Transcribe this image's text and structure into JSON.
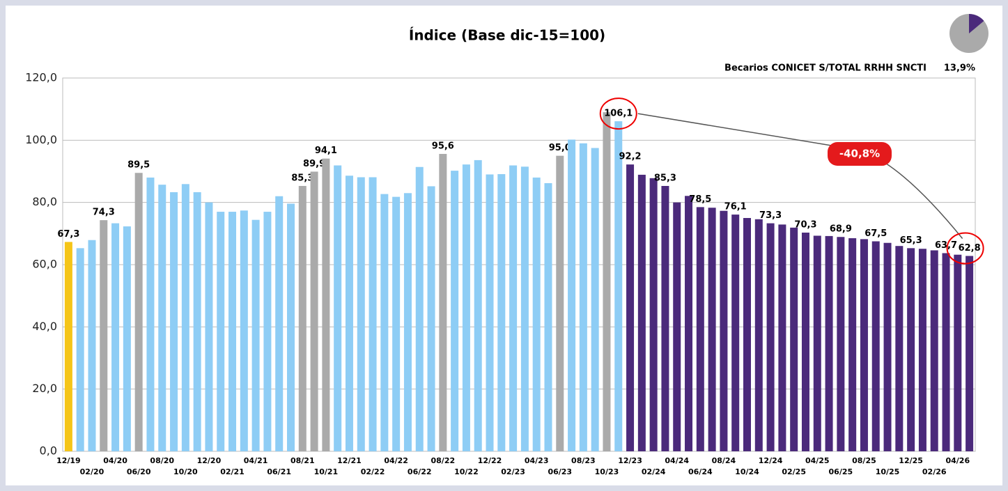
{
  "chart_data": {
    "type": "bar",
    "title": "Índice (Base dic-15=100)",
    "subtitle": "Becarios CONICET S/TOTAL RRHH SNCTI",
    "inset_pie": {
      "value": 13.9,
      "value_label": "13,9%",
      "colors": [
        "#4b2a7b",
        "#aaaaaa"
      ]
    },
    "annotation": "-40,8%",
    "categories": [
      "12/19",
      null,
      "02/20",
      null,
      "04/20",
      null,
      "06/20",
      null,
      "08/20",
      null,
      "10/20",
      null,
      "12/20",
      null,
      "02/21",
      null,
      "04/21",
      null,
      "06/21",
      null,
      "08/21",
      null,
      "10/21",
      null,
      "12/21",
      null,
      "02/22",
      null,
      "04/22",
      null,
      "06/22",
      null,
      "08/22",
      null,
      "10/22",
      null,
      "12/22",
      null,
      "02/23",
      null,
      "04/23",
      null,
      "06/23",
      null,
      "08/23",
      null,
      "10/23",
      null,
      "12/23",
      null,
      "02/24",
      null,
      "04/24",
      null,
      "06/24",
      null,
      "08/24",
      null,
      "10/24",
      null,
      "12/24",
      null,
      "02/25",
      null,
      "04/25",
      null,
      "06/25",
      null,
      "08/25",
      null,
      "10/25",
      null,
      "12/25",
      null,
      "02/26",
      null,
      "04/26",
      null
    ],
    "values": [
      67.3,
      65.3,
      67.9,
      74.3,
      73.3,
      72.3,
      89.5,
      88.0,
      85.7,
      83.3,
      85.9,
      83.3,
      80.0,
      77.0,
      77.0,
      77.4,
      74.4,
      77.0,
      82.0,
      79.6,
      85.3,
      89.9,
      94.1,
      91.9,
      88.6,
      88.1,
      88.1,
      82.7,
      81.8,
      83.0,
      91.4,
      85.2,
      95.6,
      90.2,
      92.2,
      93.6,
      89.0,
      89.1,
      91.9,
      91.5,
      88.0,
      86.2,
      95.0,
      100.2,
      99.0,
      97.5,
      109.0,
      106.1,
      92.2,
      88.9,
      87.8,
      85.3,
      80.0,
      82.1,
      78.5,
      78.3,
      77.3,
      76.1,
      75.0,
      74.6,
      73.3,
      72.9,
      71.9,
      70.3,
      69.3,
      69.2,
      68.9,
      68.5,
      68.2,
      67.5,
      67.0,
      66.0,
      65.3,
      65.1,
      64.6,
      63.7,
      63.2,
      62.8
    ],
    "value_labels": [
      "67,3",
      null,
      null,
      "74,3",
      null,
      null,
      "89,5",
      null,
      null,
      null,
      null,
      null,
      null,
      null,
      null,
      null,
      null,
      null,
      null,
      null,
      "85,3",
      "89,9",
      "94,1",
      null,
      null,
      null,
      null,
      null,
      null,
      null,
      null,
      null,
      "95,6",
      null,
      null,
      null,
      null,
      null,
      null,
      null,
      null,
      null,
      "95,0",
      null,
      null,
      null,
      null,
      "106,1",
      "92,2",
      null,
      null,
      "85,3",
      null,
      null,
      "78,5",
      null,
      null,
      "76,1",
      null,
      null,
      "73,3",
      null,
      null,
      "70,3",
      null,
      null,
      "68,9",
      null,
      null,
      "67,5",
      null,
      null,
      "65,3",
      null,
      null,
      "63,7",
      null,
      "62,8"
    ],
    "colors": [
      "#f5c518",
      "#8ecdf5",
      "#8ecdf5",
      "#aaaaaa",
      "#8ecdf5",
      "#8ecdf5",
      "#aaaaaa",
      "#8ecdf5",
      "#8ecdf5",
      "#8ecdf5",
      "#8ecdf5",
      "#8ecdf5",
      "#8ecdf5",
      "#8ecdf5",
      "#8ecdf5",
      "#8ecdf5",
      "#8ecdf5",
      "#8ecdf5",
      "#8ecdf5",
      "#8ecdf5",
      "#aaaaaa",
      "#aaaaaa",
      "#aaaaaa",
      "#8ecdf5",
      "#8ecdf5",
      "#8ecdf5",
      "#8ecdf5",
      "#8ecdf5",
      "#8ecdf5",
      "#8ecdf5",
      "#8ecdf5",
      "#8ecdf5",
      "#aaaaaa",
      "#8ecdf5",
      "#8ecdf5",
      "#8ecdf5",
      "#8ecdf5",
      "#8ecdf5",
      "#8ecdf5",
      "#8ecdf5",
      "#8ecdf5",
      "#8ecdf5",
      "#aaaaaa",
      "#8ecdf5",
      "#8ecdf5",
      "#8ecdf5",
      "#aaaaaa",
      "#8ecdf5",
      "#4b2a7b",
      "#4b2a7b",
      "#4b2a7b",
      "#4b2a7b",
      "#4b2a7b",
      "#4b2a7b",
      "#4b2a7b",
      "#4b2a7b",
      "#4b2a7b",
      "#4b2a7b",
      "#4b2a7b",
      "#4b2a7b",
      "#4b2a7b",
      "#4b2a7b",
      "#4b2a7b",
      "#4b2a7b",
      "#4b2a7b",
      "#4b2a7b",
      "#4b2a7b",
      "#4b2a7b",
      "#4b2a7b",
      "#4b2a7b",
      "#4b2a7b",
      "#4b2a7b",
      "#4b2a7b",
      "#4b2a7b",
      "#4b2a7b",
      "#4b2a7b",
      "#4b2a7b",
      "#4b2a7b"
    ],
    "ylim": [
      0,
      120
    ],
    "yticks": [
      {
        "value": 0,
        "label": "0,0"
      },
      {
        "value": 20,
        "label": "20,0"
      },
      {
        "value": 40,
        "label": "40,0"
      },
      {
        "value": 60,
        "label": "60,0"
      },
      {
        "value": 80,
        "label": "80,0"
      },
      {
        "value": 100,
        "label": "100,0"
      },
      {
        "value": 120,
        "label": "120,0"
      }
    ],
    "grid": true
  }
}
